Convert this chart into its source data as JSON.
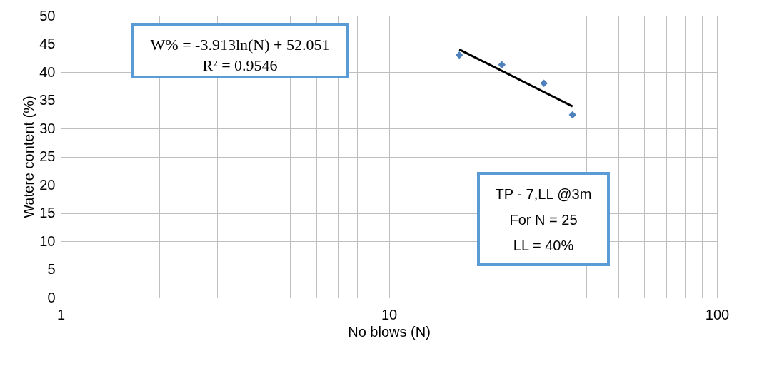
{
  "chart_data": {
    "type": "scatter",
    "xlabel": "No blows (N)",
    "ylabel": "Watere content (%)",
    "log": "x",
    "grid": true,
    "marker": "diamond",
    "xlim": [
      1,
      100
    ],
    "ylim": [
      0,
      50
    ],
    "xticks": [
      1,
      {
        "value": 2,
        "label": null
      },
      {
        "value": 3,
        "label": null
      },
      {
        "value": 4,
        "label": null
      },
      {
        "value": 5,
        "label": null
      },
      {
        "value": 6,
        "label": null
      },
      {
        "value": 7,
        "label": null
      },
      {
        "value": 8,
        "label": null
      },
      {
        "value": 9,
        "label": null
      },
      10,
      {
        "value": 20,
        "label": null
      },
      {
        "value": 30,
        "label": null
      },
      {
        "value": 40,
        "label": null
      },
      {
        "value": 50,
        "label": null
      },
      {
        "value": 60,
        "label": null
      },
      {
        "value": 70,
        "label": null
      },
      {
        "value": 80,
        "label": null
      },
      {
        "value": 90,
        "label": null
      },
      100
    ],
    "yticks": [
      0,
      5,
      10,
      15,
      20,
      25,
      30,
      35,
      40,
      45,
      50
    ],
    "series": [
      {
        "color": "#4f81bd",
        "x": [
          16.4,
          22.1,
          29.7,
          36.3
        ],
        "values": [
          43.0,
          41.3,
          38.0,
          32.4
        ]
      },
      {
        "type": "line",
        "color": "#000000",
        "marker": "none",
        "x": [
          16.4,
          36.3
        ],
        "values": [
          44.0,
          33.9
        ]
      }
    ],
    "annotations": [
      "W% = -3.913ln(N)  + 52.051",
      "R² = 0.9546",
      "TP - 7,LL @3m",
      "For N = 25",
      "LL = 40%"
    ]
  }
}
